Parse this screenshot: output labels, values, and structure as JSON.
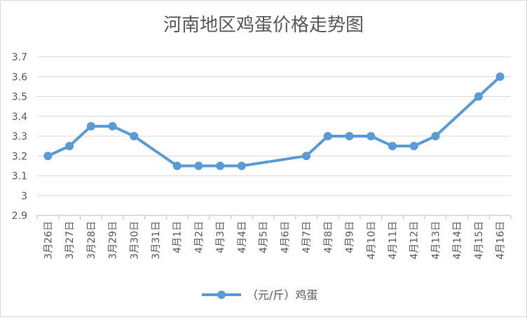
{
  "chart_data": {
    "type": "line",
    "title": "河南地区鸡蛋价格走势图",
    "xlabel": "",
    "ylabel": "",
    "ylim": [
      2.9,
      3.7
    ],
    "yticks": [
      "3.7",
      "3.6",
      "3.5",
      "3.4",
      "3.3",
      "3.2",
      "3.1",
      "3",
      "2.9"
    ],
    "grid": true,
    "legend_position": "bottom",
    "categories": [
      "3月26日",
      "3月27日",
      "3月28日",
      "3月29日",
      "3月30日",
      "3月31日",
      "4月1日",
      "4月2日",
      "4月3日",
      "4月4日",
      "4月5日",
      "4月6日",
      "4月7日",
      "4月8日",
      "4月9日",
      "4月10日",
      "4月11日",
      "4月12日",
      "4月13日",
      "4月14日",
      "4月15日",
      "4月16日"
    ],
    "series": [
      {
        "name": "（元/斤）鸡蛋",
        "color": "#5b9bd5",
        "values": [
          3.2,
          3.25,
          3.35,
          3.35,
          3.3,
          null,
          3.15,
          3.15,
          3.15,
          3.15,
          null,
          null,
          3.2,
          3.3,
          3.3,
          3.3,
          3.25,
          3.25,
          3.3,
          null,
          3.5,
          3.6
        ]
      }
    ]
  }
}
